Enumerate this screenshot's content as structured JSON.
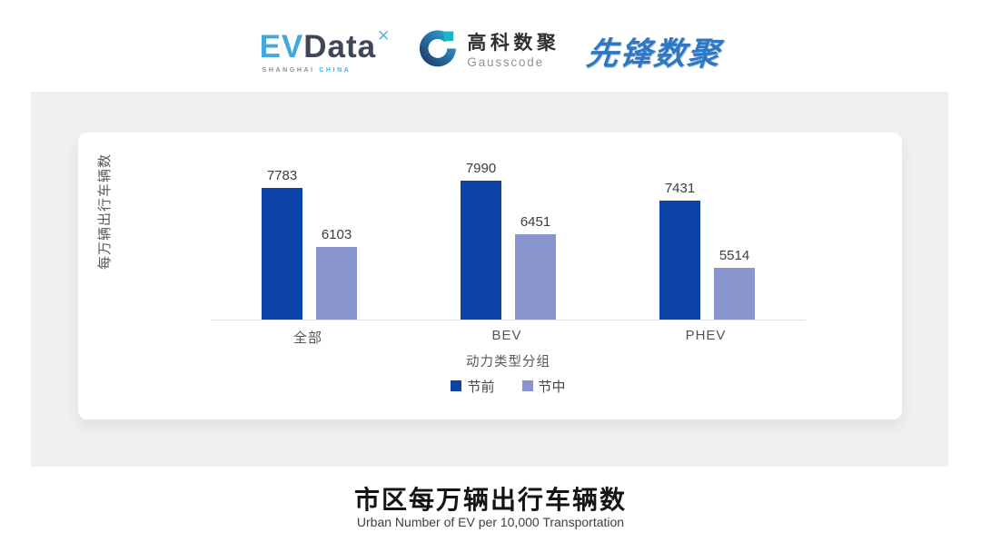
{
  "header": {
    "evdata": {
      "part_ev": "EV",
      "part_data": "Data",
      "mark": "✕",
      "sub_left": "SHANGHAI",
      "sub_right": "CHINA"
    },
    "gausscode": {
      "name_cn": "高科数聚",
      "name_en": "Gausscode"
    },
    "xianfeng": {
      "text": "先锋数聚"
    }
  },
  "chart_data": {
    "type": "bar",
    "categories": [
      "全部",
      "BEV",
      "PHEV"
    ],
    "series": [
      {
        "name": "节前",
        "color": "#0c43a7",
        "values": [
          7783,
          7990,
          7431
        ]
      },
      {
        "name": "节中",
        "color": "#8b95cd",
        "values": [
          6103,
          6451,
          5514
        ]
      }
    ],
    "title": "",
    "xlabel": "动力类型分组",
    "ylabel": "每万辆出行车辆数",
    "ylim": [
      4035,
      8400
    ],
    "grid": false,
    "legend_position": "bottom",
    "value_labels": true
  },
  "footer": {
    "title": "市区每万辆出行车辆数",
    "subtitle": "Urban Number of EV per 10,000 Transportation"
  },
  "colors": {
    "series_pre": "#0c43a7",
    "series_mid": "#8b95cd",
    "panel_gray": "#f0f0f1",
    "card_white": "#ffffff",
    "evdata_blue": "#41a9dc",
    "evdata_dark": "#3d4756",
    "gausscode_teal": "#17b6c9",
    "gausscode_navy": "#1d3f6e",
    "xianfeng_blue": "#2d77c5",
    "axis_line": "#e2e2e2"
  }
}
